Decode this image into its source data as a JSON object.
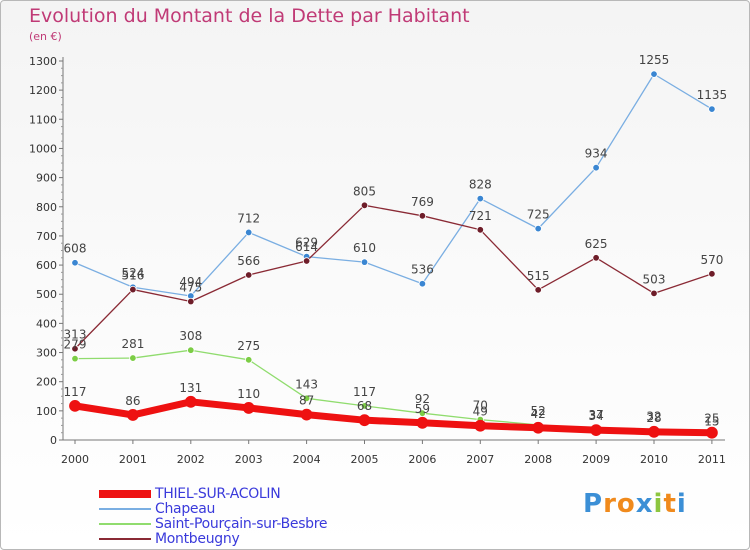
{
  "title": "Evolution du Montant de la Dette par Habitant",
  "unit_label": "(en €)",
  "logo": {
    "text": "Proxiti",
    "letters": [
      "P",
      "r",
      "o",
      "x",
      "i",
      "t",
      "i"
    ],
    "colors": [
      "#3b8fd6",
      "#f08a1c",
      "#f08a1c",
      "#3b8fd6",
      "#8dc63f",
      "#f08a1c",
      "#3b8fd6"
    ]
  },
  "chart_data": {
    "type": "line",
    "title": "Evolution du Montant de la Dette par Habitant",
    "ylabel": "(en €)",
    "xlabel": "",
    "x": [
      "2000",
      "2001",
      "2002",
      "2003",
      "2004",
      "2005",
      "2006",
      "2007",
      "2008",
      "2009",
      "2010",
      "2011"
    ],
    "ylim": [
      0,
      1300
    ],
    "yticks": [
      "0",
      "100",
      "200",
      "300",
      "400",
      "500",
      "600",
      "700",
      "800",
      "900",
      "1000",
      "1100",
      "1200",
      "1300"
    ],
    "grid": false,
    "legend_position": "bottom-left",
    "series": [
      {
        "name": "THIEL-SUR-ACOLIN",
        "color": "#ee1111",
        "marker": "#ee1111",
        "width": 7,
        "values": [
          117,
          86,
          131,
          110,
          87,
          68,
          59,
          49,
          42,
          34,
          28,
          25
        ],
        "labels": [
          "117",
          "86",
          "131",
          "110",
          "87",
          "68",
          "59",
          "49",
          "42",
          "34",
          "28",
          "25"
        ]
      },
      {
        "name": "Chapeau",
        "color": "#7aaee2",
        "marker": "#3a86d2",
        "width": 1.3,
        "values": [
          608,
          524,
          494,
          712,
          629,
          610,
          536,
          828,
          725,
          934,
          1255,
          1135
        ],
        "labels": [
          "608",
          "524",
          "494",
          "712",
          "629",
          "610",
          "536",
          "828",
          "725",
          "934",
          "1255",
          "1135"
        ]
      },
      {
        "name": "Saint-Pourçain-sur-Besbre",
        "color": "#90dc6e",
        "marker": "#7ccd45",
        "width": 1.3,
        "values": [
          279,
          281,
          308,
          275,
          143,
          117,
          92,
          70,
          52,
          37,
          32,
          15
        ],
        "labels": [
          "279",
          "281",
          "308",
          "275",
          "143",
          "117",
          "92",
          "70",
          "52",
          "37",
          "32",
          "15"
        ]
      },
      {
        "name": "Montbeugny",
        "color": "#8a2a35",
        "marker": "#6e1d29",
        "width": 1.3,
        "values": [
          313,
          516,
          475,
          566,
          614,
          805,
          769,
          721,
          515,
          625,
          503,
          570
        ],
        "labels": [
          "313",
          "516",
          "475",
          "566",
          "614",
          "805",
          "769",
          "721",
          "515",
          "625",
          "503",
          "570"
        ]
      }
    ]
  }
}
